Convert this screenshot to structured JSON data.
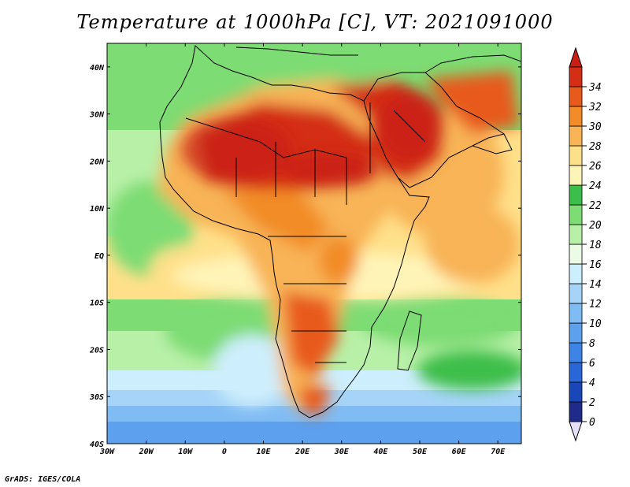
{
  "title": "Temperature at 1000hPa [C], VT: 2021091000",
  "footer": "GrADS: IGES/COLA",
  "map": {
    "lon_range": [
      -30,
      76
    ],
    "lat_range": [
      -40,
      45
    ],
    "lon_ticks": [
      {
        "value": -30,
        "label": "30W"
      },
      {
        "value": -20,
        "label": "20W"
      },
      {
        "value": -10,
        "label": "10W"
      },
      {
        "value": 0,
        "label": "0"
      },
      {
        "value": 10,
        "label": "10E"
      },
      {
        "value": 20,
        "label": "20E"
      },
      {
        "value": 30,
        "label": "30E"
      },
      {
        "value": 40,
        "label": "40E"
      },
      {
        "value": 50,
        "label": "50E"
      },
      {
        "value": 60,
        "label": "60E"
      },
      {
        "value": 70,
        "label": "70E"
      }
    ],
    "lat_ticks": [
      {
        "value": 40,
        "label": "40N"
      },
      {
        "value": 30,
        "label": "30N"
      },
      {
        "value": 20,
        "label": "20N"
      },
      {
        "value": 10,
        "label": "10N"
      },
      {
        "value": 0,
        "label": "EQ"
      },
      {
        "value": -10,
        "label": "10S"
      },
      {
        "value": -20,
        "label": "20S"
      },
      {
        "value": -30,
        "label": "30S"
      },
      {
        "value": -40,
        "label": "40S"
      }
    ]
  },
  "colorbar": {
    "levels": [
      0,
      2,
      4,
      6,
      8,
      10,
      12,
      14,
      16,
      18,
      20,
      22,
      24,
      26,
      28,
      30,
      32,
      34
    ],
    "colors": [
      "#1f2a8a",
      "#1947b8",
      "#2a66d8",
      "#3d84e6",
      "#5ca0ee",
      "#80bcf4",
      "#a6d4f8",
      "#cdeefc",
      "#ecfbe6",
      "#b8f0a8",
      "#7ddc73",
      "#3cbe4a",
      "#fff4b8",
      "#ffe08a",
      "#f8b456",
      "#f28c28",
      "#e85a1c",
      "#d42e16"
    ],
    "under_color": "#e6e0fa",
    "over_color": "#c81e14"
  }
}
